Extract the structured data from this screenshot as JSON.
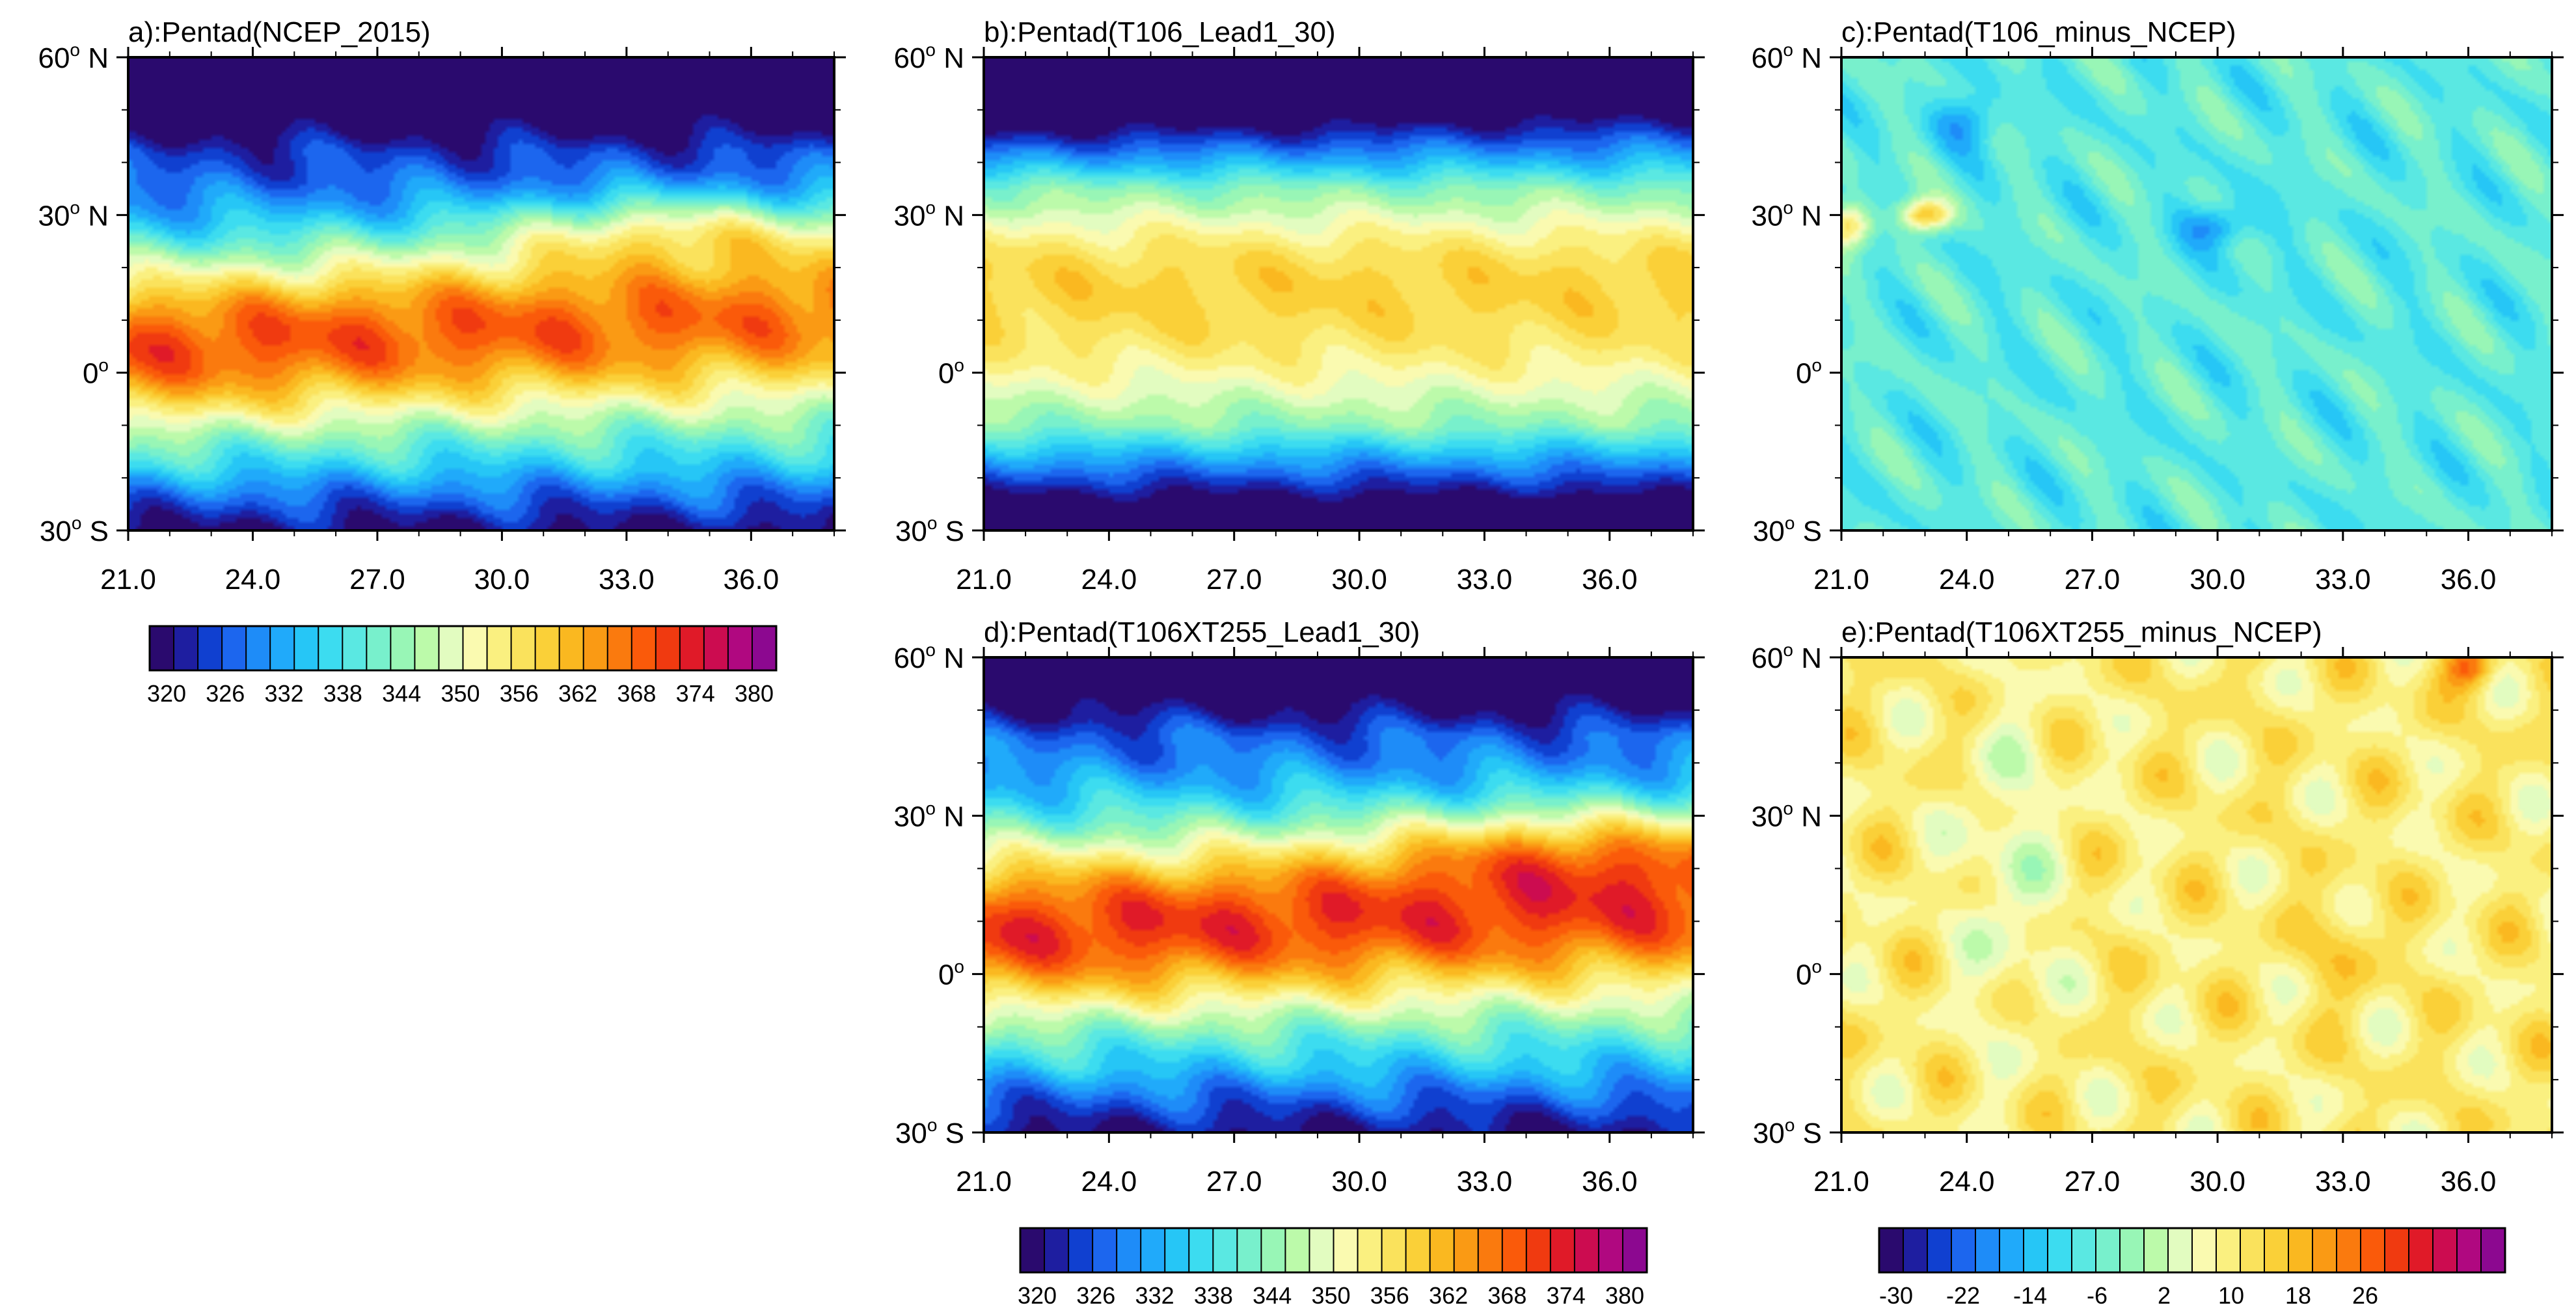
{
  "chart_data": {
    "type": "heatmap",
    "x_ticks": [
      "21.0",
      "24.0",
      "27.0",
      "30.0",
      "33.0",
      "36.0"
    ],
    "x_values": [
      21,
      24,
      27,
      30,
      33,
      36
    ],
    "xlim": [
      21,
      38
    ],
    "y_ticks": [
      {
        "label": "60",
        "dir": "N",
        "value": 60
      },
      {
        "label": "30",
        "dir": "N",
        "value": 30
      },
      {
        "label": "0",
        "dir": "",
        "value": 0
      },
      {
        "label": "30",
        "dir": "S",
        "value": -30
      }
    ],
    "ylim": [
      -30,
      60
    ],
    "panels": [
      {
        "id": "a",
        "title": "a):Pentad(NCEP_2015)",
        "scale": "abs",
        "range": [
          320,
          380
        ]
      },
      {
        "id": "b",
        "title": "b):Pentad(T106_Lead1_30)",
        "scale": "abs",
        "range": [
          320,
          380
        ]
      },
      {
        "id": "c",
        "title": "c):Pentad(T106_minus_NCEP)",
        "scale": "diff",
        "range": [
          -30,
          30
        ]
      },
      {
        "id": "d",
        "title": "d):Pentad(T106XT255_Lead1_30)",
        "scale": "abs",
        "range": [
          320,
          380
        ]
      },
      {
        "id": "e",
        "title": "e):Pentad(T106XT255_minus_NCEP)",
        "scale": "diff",
        "range": [
          -30,
          30
        ]
      }
    ],
    "colorbars": [
      {
        "id": "cb-abs",
        "scale": "abs",
        "labels": [
          "320",
          "326",
          "332",
          "338",
          "344",
          "350",
          "356",
          "362",
          "368",
          "374",
          "380"
        ]
      },
      {
        "id": "cb-abs-2",
        "scale": "abs",
        "labels": [
          "320",
          "326",
          "332",
          "338",
          "344",
          "350",
          "356",
          "362",
          "368",
          "374",
          "380"
        ]
      },
      {
        "id": "cb-diff",
        "scale": "diff",
        "labels": [
          "-30",
          "-22",
          "-14",
          "-6",
          "2",
          "10",
          "18",
          "26"
        ]
      }
    ],
    "palette": [
      "#2a0a6e",
      "#1e1ea0",
      "#1040d0",
      "#1c66ee",
      "#1e8cf8",
      "#20aafa",
      "#26c6f6",
      "#3cdcf0",
      "#5ae8e2",
      "#78f0cc",
      "#98f6b6",
      "#bcfaaa",
      "#e2fcc0",
      "#fafab0",
      "#faf080",
      "#fae25c",
      "#fad038",
      "#fab820",
      "#fa9a14",
      "#fa7a0e",
      "#fa5a0a",
      "#f03a10",
      "#e01a28",
      "#cc0c50",
      "#b00880",
      "#8c0890"
    ]
  }
}
